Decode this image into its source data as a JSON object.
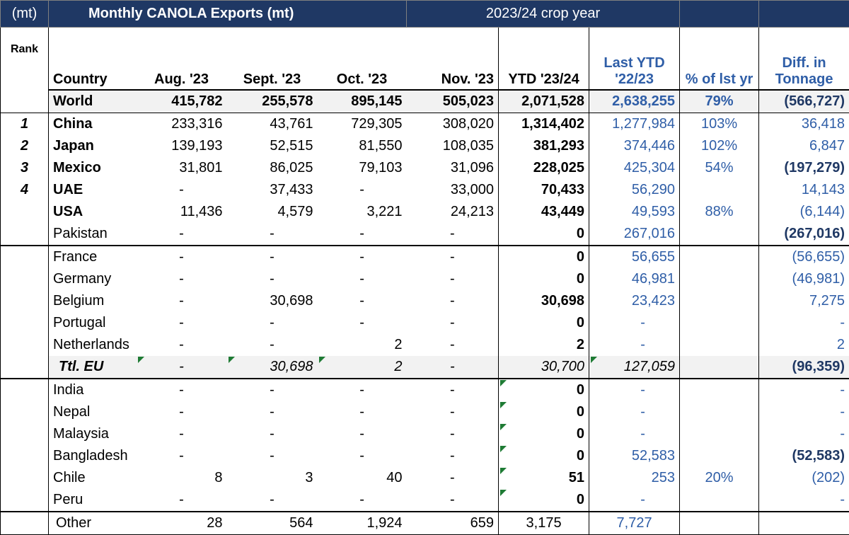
{
  "header": {
    "unit": "(mt)",
    "title": "Monthly CANOLA Exports  (mt)",
    "crop_year": "2023/24 crop year",
    "rank": "Rank",
    "country": "Country",
    "aug": "Aug. '23",
    "sep": "Sept. '23",
    "oct": "Oct. '23",
    "nov": "Nov. '23",
    "ytd": "YTD '23/24",
    "last_ytd_1": "Last YTD",
    "last_ytd_2": "'22/23",
    "pct": "% of lst yr",
    "diff_1": "Diff. in",
    "diff_2": "Tonnage"
  },
  "world": {
    "country": "World",
    "aug": "415,782",
    "sep": "255,578",
    "oct": "895,145",
    "nov": "505,023",
    "ytd": "2,071,528",
    "last": "2,638,255",
    "pct": "79%",
    "diff": "(566,727)"
  },
  "rows": [
    {
      "rank": "1",
      "country": "China",
      "aug": "233,316",
      "sep": "43,761",
      "oct": "729,305",
      "nov": "308,020",
      "ytd": "1,314,402",
      "last": "1,277,984",
      "pct": "103%",
      "diff": "36,418"
    },
    {
      "rank": "2",
      "country": "Japan",
      "aug": "139,193",
      "sep": "52,515",
      "oct": "81,550",
      "nov": "108,035",
      "ytd": "381,293",
      "last": "374,446",
      "pct": "102%",
      "diff": "6,847"
    },
    {
      "rank": "3",
      "country": "Mexico",
      "aug": "31,801",
      "sep": "86,025",
      "oct": "79,103",
      "nov": "31,096",
      "ytd": "228,025",
      "last": "425,304",
      "pct": "54%",
      "diff": "(197,279)"
    },
    {
      "rank": "4",
      "country": "UAE",
      "aug": "-",
      "sep": "37,433",
      "oct": "-",
      "nov": "33,000",
      "ytd": "70,433",
      "last": "56,290",
      "pct": "",
      "diff": "14,143"
    },
    {
      "rank": "",
      "country": "USA",
      "aug": "11,436",
      "sep": "4,579",
      "oct": "3,221",
      "nov": "24,213",
      "ytd": "43,449",
      "last": "49,593",
      "pct": "88%",
      "diff": "(6,144)"
    },
    {
      "rank": "",
      "country": "Pakistan",
      "aug": "-",
      "sep": "-",
      "oct": "-",
      "nov": "-",
      "ytd": "0",
      "last": "267,016",
      "pct": "",
      "diff": "(267,016)"
    },
    {
      "rank": "",
      "country": "France",
      "aug": "-",
      "sep": "-",
      "oct": "-",
      "nov": "-",
      "ytd": "0",
      "last": "56,655",
      "pct": "",
      "diff": "(56,655)"
    },
    {
      "rank": "",
      "country": "Germany",
      "aug": "-",
      "sep": "-",
      "oct": "-",
      "nov": "-",
      "ytd": "0",
      "last": "46,981",
      "pct": "",
      "diff": "(46,981)"
    },
    {
      "rank": "",
      "country": "Belgium",
      "aug": "-",
      "sep": "30,698",
      "oct": "-",
      "nov": "-",
      "ytd": "30,698",
      "last": "23,423",
      "pct": "",
      "diff": "7,275"
    },
    {
      "rank": "",
      "country": "Portugal",
      "aug": "-",
      "sep": "-",
      "oct": "-",
      "nov": "-",
      "ytd": "0",
      "last": "-",
      "pct": "",
      "diff": "-"
    },
    {
      "rank": "",
      "country": "Netherlands",
      "aug": "-",
      "sep": "-",
      "oct": "2",
      "nov": "-",
      "ytd": "2",
      "last": "-",
      "pct": "",
      "diff": "2"
    },
    {
      "rank": "",
      "country": "Ttl. EU",
      "aug": "-",
      "sep": "30,698",
      "oct": "2",
      "nov": "-",
      "ytd": "30,700",
      "last": "127,059",
      "pct": "",
      "diff": "(96,359)"
    },
    {
      "rank": "",
      "country": "India",
      "aug": "-",
      "sep": "-",
      "oct": "-",
      "nov": "-",
      "ytd": "0",
      "last": "-",
      "pct": "",
      "diff": "-"
    },
    {
      "rank": "",
      "country": "Nepal",
      "aug": "-",
      "sep": "-",
      "oct": "-",
      "nov": "-",
      "ytd": "0",
      "last": "-",
      "pct": "",
      "diff": "-"
    },
    {
      "rank": "",
      "country": "Malaysia",
      "aug": "-",
      "sep": "-",
      "oct": "-",
      "nov": "-",
      "ytd": "0",
      "last": "-",
      "pct": "",
      "diff": "-"
    },
    {
      "rank": "",
      "country": "Bangladesh",
      "aug": "-",
      "sep": "-",
      "oct": "-",
      "nov": "-",
      "ytd": "0",
      "last": "52,583",
      "pct": "",
      "diff": "(52,583)"
    },
    {
      "rank": "",
      "country": "Chile",
      "aug": "8",
      "sep": "3",
      "oct": "40",
      "nov": "-",
      "ytd": "51",
      "last": "253",
      "pct": "20%",
      "diff": "(202)"
    },
    {
      "rank": "",
      "country": "Peru",
      "aug": "-",
      "sep": "-",
      "oct": "-",
      "nov": "-",
      "ytd": "0",
      "last": "-",
      "pct": "",
      "diff": "-"
    },
    {
      "rank": "",
      "country": "Other",
      "aug": "28",
      "sep": "564",
      "oct": "1,924",
      "nov": "659",
      "ytd": "3,175",
      "last": "7,727",
      "pct": "",
      "diff": ""
    }
  ]
}
